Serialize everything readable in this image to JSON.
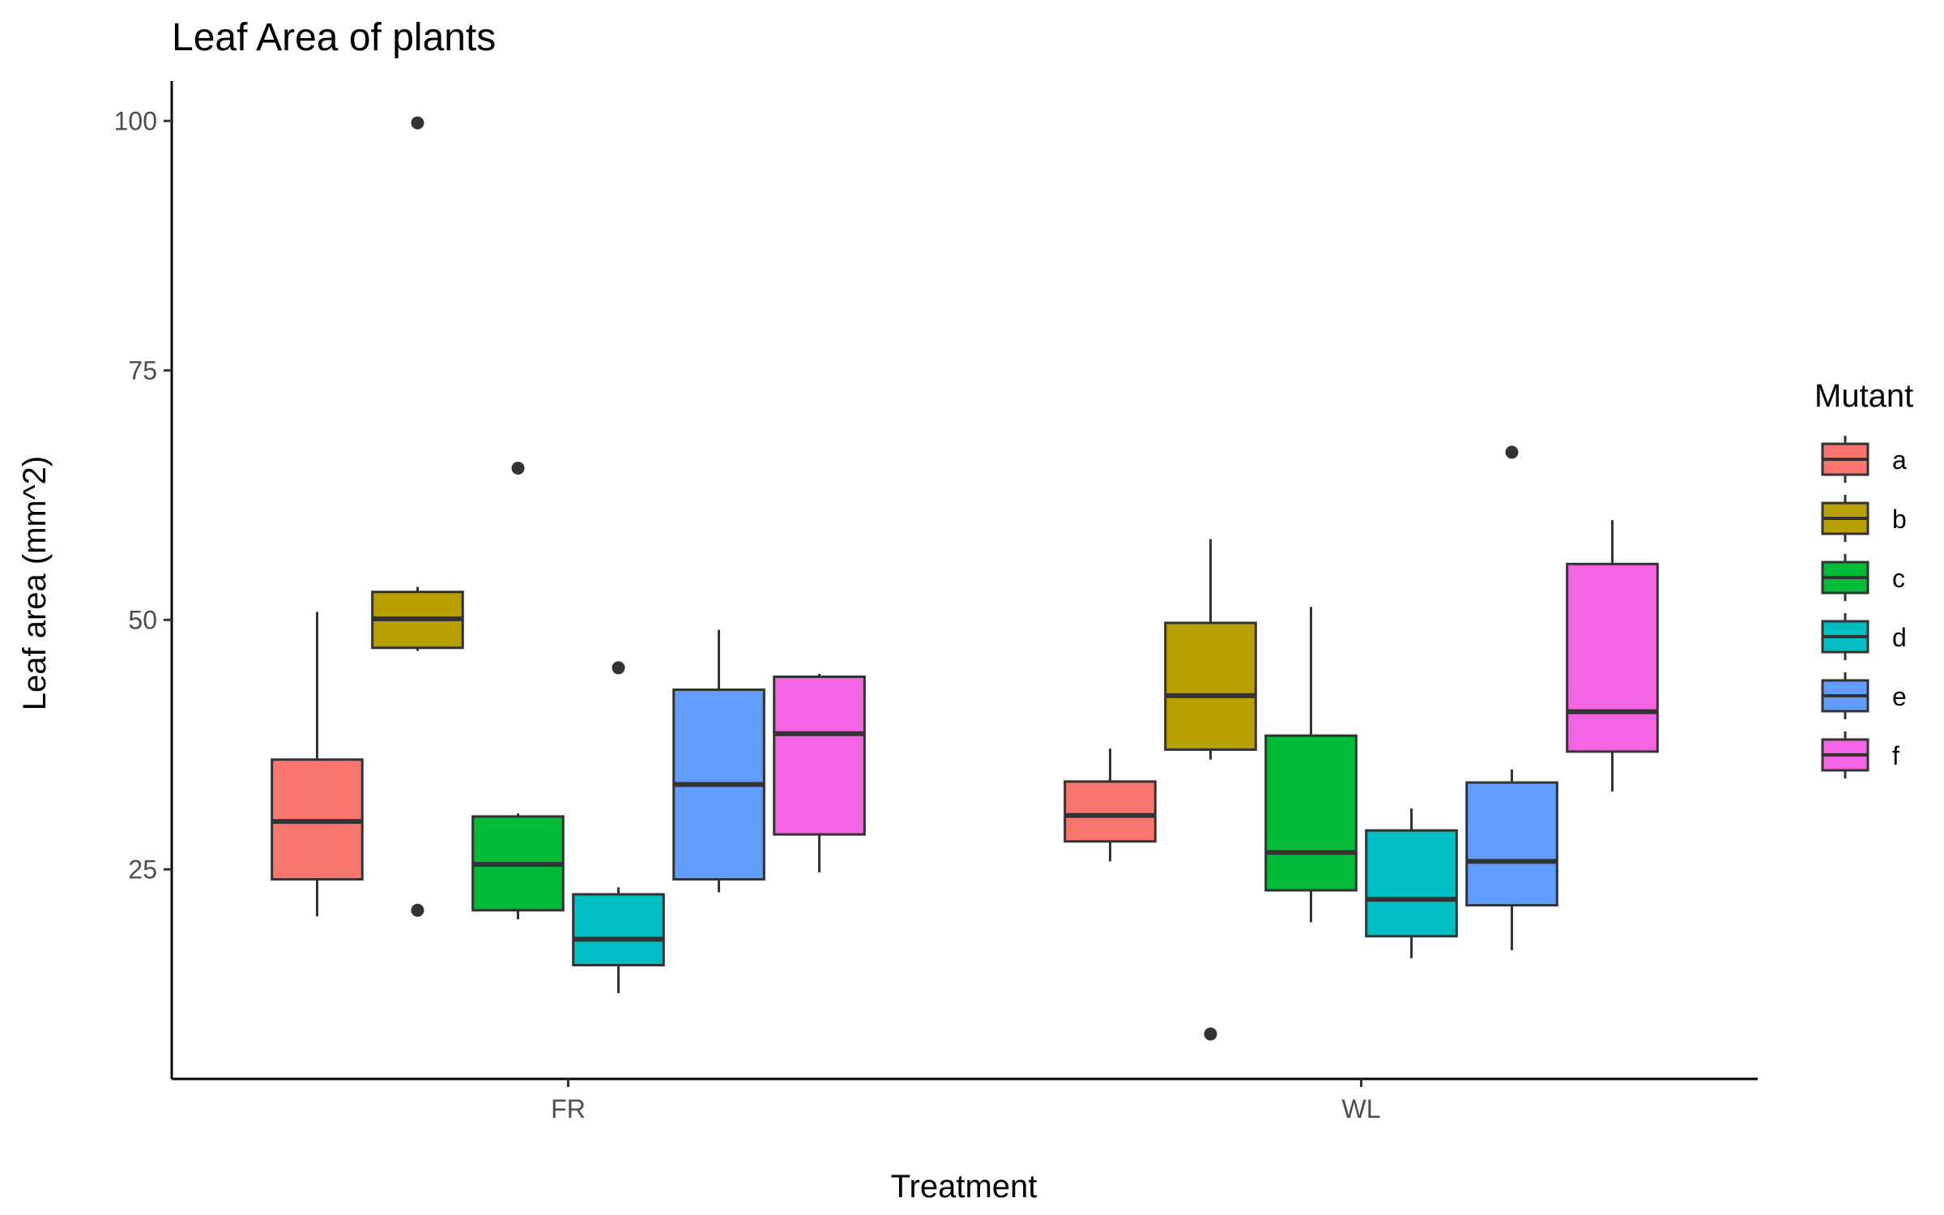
{
  "chart_data": {
    "type": "boxplot",
    "title": "Leaf Area of plants",
    "xlabel": "Treatment",
    "ylabel": "Leaf area (mm^2)",
    "categories": [
      "FR",
      "WL"
    ],
    "ylim": [
      4,
      104
    ],
    "yticks": [
      25,
      50,
      75,
      100
    ],
    "grid": false,
    "legend": {
      "title": "Mutant",
      "placement": "right"
    },
    "series": [
      {
        "name": "a",
        "color": "#F8766D",
        "boxes": [
          {
            "category": "FR",
            "whisker_low": 20.3,
            "q1": 24.0,
            "median": 29.8,
            "q3": 36.0,
            "whisker_high": 50.8,
            "outliers": []
          },
          {
            "category": "WL",
            "whisker_low": 25.8,
            "q1": 27.8,
            "median": 30.4,
            "q3": 33.8,
            "whisker_high": 37.1,
            "outliers": []
          }
        ]
      },
      {
        "name": "b",
        "color": "#B79F00",
        "boxes": [
          {
            "category": "FR",
            "whisker_low": 46.9,
            "q1": 47.2,
            "median": 50.1,
            "q3": 52.8,
            "whisker_high": 53.3,
            "outliers": [
              99.8,
              20.9
            ]
          },
          {
            "category": "WL",
            "whisker_low": 36.0,
            "q1": 37.0,
            "median": 42.4,
            "q3": 49.7,
            "whisker_high": 58.1,
            "outliers": [
              8.5
            ]
          }
        ]
      },
      {
        "name": "c",
        "color": "#00BA38",
        "boxes": [
          {
            "category": "FR",
            "whisker_low": 20.0,
            "q1": 20.9,
            "median": 25.5,
            "q3": 30.3,
            "whisker_high": 30.6,
            "outliers": [
              65.2
            ]
          },
          {
            "category": "WL",
            "whisker_low": 19.7,
            "q1": 22.9,
            "median": 26.7,
            "q3": 38.4,
            "whisker_high": 51.3,
            "outliers": []
          }
        ]
      },
      {
        "name": "d",
        "color": "#00BFC4",
        "boxes": [
          {
            "category": "FR",
            "whisker_low": 12.6,
            "q1": 15.4,
            "median": 18.0,
            "q3": 22.5,
            "whisker_high": 23.2,
            "outliers": [
              45.2
            ]
          },
          {
            "category": "WL",
            "whisker_low": 16.1,
            "q1": 18.3,
            "median": 22.0,
            "q3": 28.9,
            "whisker_high": 31.1,
            "outliers": []
          }
        ]
      },
      {
        "name": "e",
        "color": "#619CFF",
        "boxes": [
          {
            "category": "FR",
            "whisker_low": 22.7,
            "q1": 24.0,
            "median": 33.5,
            "q3": 43.0,
            "whisker_high": 49.0,
            "outliers": []
          },
          {
            "category": "WL",
            "whisker_low": 16.9,
            "q1": 21.4,
            "median": 25.8,
            "q3": 33.7,
            "whisker_high": 35.0,
            "outliers": [
              66.8
            ]
          }
        ]
      },
      {
        "name": "f",
        "color": "#F564E3",
        "boxes": [
          {
            "category": "FR",
            "whisker_low": 24.7,
            "q1": 28.5,
            "median": 38.6,
            "q3": 44.3,
            "whisker_high": 44.6,
            "outliers": []
          },
          {
            "category": "WL",
            "whisker_low": 32.8,
            "q1": 36.8,
            "median": 40.8,
            "q3": 55.6,
            "whisker_high": 60.0,
            "outliers": []
          }
        ]
      }
    ]
  }
}
